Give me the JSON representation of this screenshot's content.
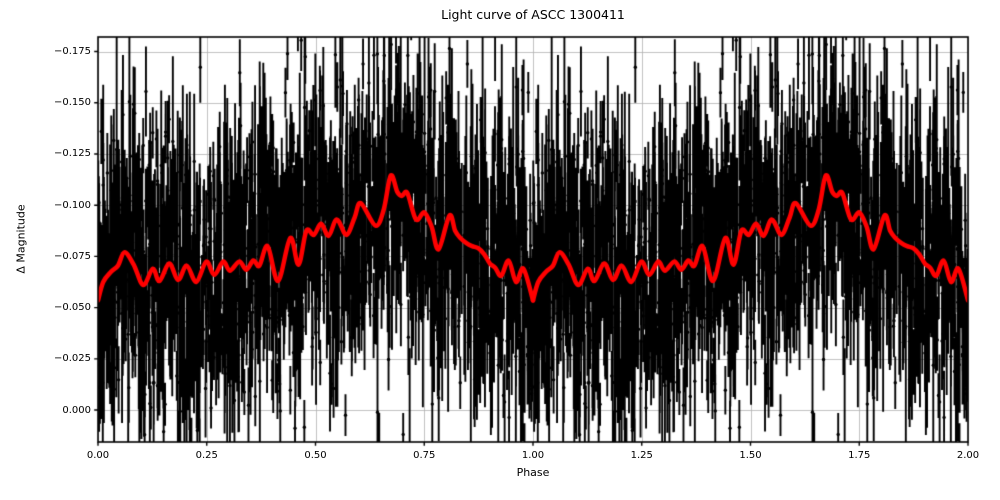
{
  "chart_data": {
    "type": "scatter",
    "title": "Light curve of ASCC 1300411",
    "xlabel": "Phase",
    "ylabel": "Δ Magnitude",
    "xlim": [
      0.0,
      2.0
    ],
    "ylim": [
      0.0156,
      -0.1821
    ],
    "y_axis_inverted": true,
    "grid": true,
    "x_ticks": {
      "values": [
        0.0,
        0.25,
        0.5,
        0.75,
        1.0,
        1.25,
        1.5,
        1.75,
        2.0
      ],
      "labels": [
        "0.00",
        "0.25",
        "0.50",
        "0.75",
        "1.00",
        "1.25",
        "1.50",
        "1.75",
        "2.00"
      ]
    },
    "y_ticks": {
      "values": [
        -0.175,
        -0.15,
        -0.125,
        -0.1,
        -0.075,
        -0.05,
        -0.025,
        0.0
      ],
      "labels": [
        "−0.175",
        "−0.150",
        "−0.125",
        "−0.100",
        "−0.075",
        "−0.050",
        "−0.025",
        "0.000"
      ]
    },
    "description": "Phase-folded stellar light curve: dense black photometric points with vertical error bars plotted twice (phase 0-1 duplicated at 1-2), with a bold red smoothed mean curve on top. Magnitude axis is inverted.",
    "series": [
      {
        "name": "photometry",
        "style": "errorbar-scatter",
        "color": "#000000",
        "marker_radius": 1.7,
        "errorbar_linewidth": 1.9,
        "n_points_per_phase": 1700,
        "duplicated_phase_offsets": [
          0,
          1
        ],
        "mag_sigma_core": 0.028,
        "mag_sigma_tail": 0.055,
        "tail_fraction": 0.15,
        "err_half_base": 0.009,
        "err_half_exp_mean": 0.013,
        "err_half_max": 0.06,
        "seed": 7
      },
      {
        "name": "mean-curve",
        "style": "line",
        "color": "#ff0000",
        "linewidth": 4.5,
        "points": [
          [
            0.0,
            -0.0535
          ],
          [
            0.012,
            -0.0625
          ],
          [
            0.03,
            -0.0675
          ],
          [
            0.046,
            -0.0705
          ],
          [
            0.061,
            -0.077
          ],
          [
            0.082,
            -0.071
          ],
          [
            0.104,
            -0.061
          ],
          [
            0.126,
            -0.069
          ],
          [
            0.141,
            -0.063
          ],
          [
            0.164,
            -0.0715
          ],
          [
            0.184,
            -0.0635
          ],
          [
            0.204,
            -0.0705
          ],
          [
            0.226,
            -0.0625
          ],
          [
            0.249,
            -0.0725
          ],
          [
            0.267,
            -0.066
          ],
          [
            0.288,
            -0.0725
          ],
          [
            0.303,
            -0.068
          ],
          [
            0.325,
            -0.0725
          ],
          [
            0.341,
            -0.0685
          ],
          [
            0.357,
            -0.073
          ],
          [
            0.371,
            -0.0705
          ],
          [
            0.39,
            -0.08
          ],
          [
            0.414,
            -0.063
          ],
          [
            0.442,
            -0.084
          ],
          [
            0.461,
            -0.071
          ],
          [
            0.479,
            -0.0875
          ],
          [
            0.496,
            -0.0855
          ],
          [
            0.513,
            -0.091
          ],
          [
            0.53,
            -0.085
          ],
          [
            0.549,
            -0.093
          ],
          [
            0.571,
            -0.0855
          ],
          [
            0.59,
            -0.094
          ],
          [
            0.604,
            -0.101
          ],
          [
            0.638,
            -0.09
          ],
          [
            0.657,
            -0.098
          ],
          [
            0.673,
            -0.1145
          ],
          [
            0.688,
            -0.1065
          ],
          [
            0.699,
            -0.1045
          ],
          [
            0.711,
            -0.106
          ],
          [
            0.731,
            -0.093
          ],
          [
            0.75,
            -0.0965
          ],
          [
            0.767,
            -0.0895
          ],
          [
            0.783,
            -0.0785
          ],
          [
            0.808,
            -0.095
          ],
          [
            0.821,
            -0.0875
          ],
          [
            0.833,
            -0.084
          ],
          [
            0.847,
            -0.0815
          ],
          [
            0.86,
            -0.08
          ],
          [
            0.874,
            -0.079
          ],
          [
            0.888,
            -0.076
          ],
          [
            0.901,
            -0.0715
          ],
          [
            0.913,
            -0.0695
          ],
          [
            0.927,
            -0.0655
          ],
          [
            0.944,
            -0.073
          ],
          [
            0.961,
            -0.0625
          ],
          [
            0.978,
            -0.069
          ],
          [
            1.0,
            -0.0535
          ]
        ]
      }
    ]
  },
  "colors": {
    "background": "#ffffff",
    "grid": "#b0b0b0",
    "frame": "#000000",
    "scatter": "#000000",
    "mean_curve": "#ff0000"
  }
}
